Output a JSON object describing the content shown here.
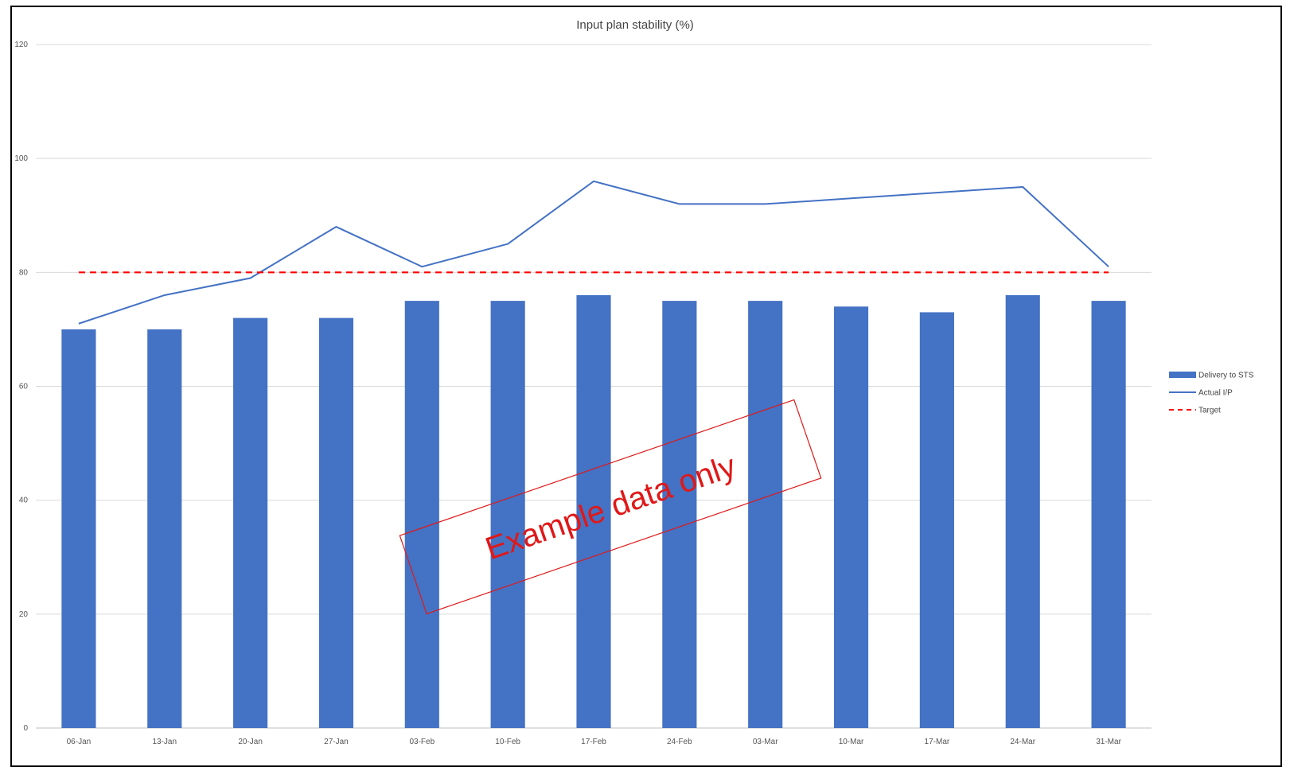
{
  "chart_data": {
    "type": "bar",
    "title": "Input plan stability (%)",
    "xlabel": "",
    "ylabel": "",
    "ylim": [
      0,
      120
    ],
    "yticks": [
      0,
      20,
      40,
      60,
      80,
      100,
      120
    ],
    "grid": true,
    "legend_position": "right",
    "categories": [
      "06-Jan",
      "13-Jan",
      "20-Jan",
      "27-Jan",
      "03-Feb",
      "10-Feb",
      "17-Feb",
      "24-Feb",
      "03-Mar",
      "10-Mar",
      "17-Mar",
      "24-Mar",
      "31-Mar"
    ],
    "series": [
      {
        "name": "Delivery to STS",
        "type": "bar",
        "color": "#4472c4",
        "values": [
          70,
          70,
          72,
          72,
          75,
          75,
          76,
          75,
          75,
          74,
          73,
          76,
          75
        ]
      },
      {
        "name": "Actual I/P",
        "type": "line",
        "color": "#4472c4",
        "values": [
          71,
          76,
          79,
          88,
          81,
          85,
          96,
          92,
          92,
          93,
          94,
          95,
          81
        ]
      },
      {
        "name": "Target",
        "type": "line",
        "style": "dashed",
        "color": "#ff0000",
        "values": [
          80,
          80,
          80,
          80,
          80,
          80,
          80,
          80,
          80,
          80,
          80,
          80,
          80
        ]
      }
    ],
    "annotation": "Example data only",
    "annotation_color": "#e01818"
  }
}
